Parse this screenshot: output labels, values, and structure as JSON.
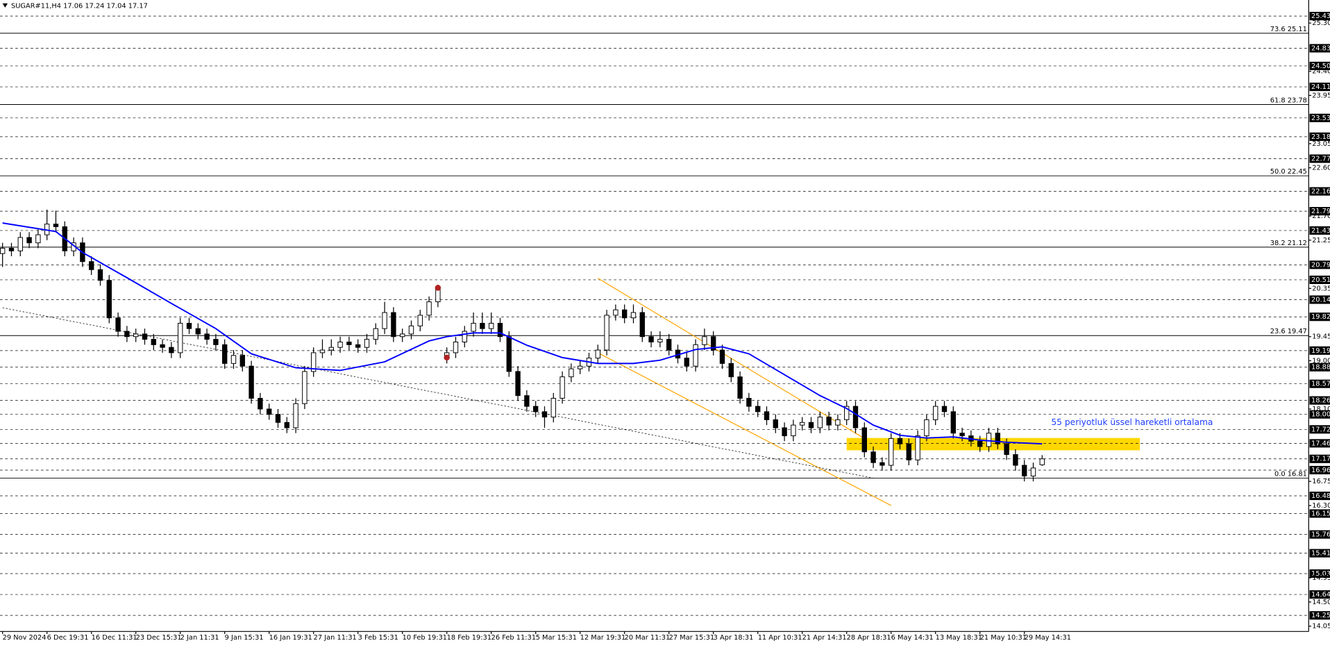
{
  "chart_data": {
    "type": "candlestick",
    "title": "SUGAR#11,H4",
    "ylim": [
      13.95,
      25.73
    ],
    "xlim": [
      0,
      147
    ],
    "categories": [
      "29 Nov 2024",
      null,
      null,
      null,
      null,
      "6 Dec 19:31",
      null,
      null,
      null,
      null,
      "16 Dec 11:31",
      null,
      null,
      null,
      null,
      "23 Dec 15:31",
      null,
      null,
      null,
      null,
      "2 Jan 11:31",
      null,
      null,
      null,
      null,
      "9 Jan 15:31",
      null,
      null,
      null,
      null,
      "16 Jan 19:31",
      null,
      null,
      null,
      null,
      "27 Jan 11:31",
      null,
      null,
      null,
      null,
      "3 Feb 15:31",
      null,
      null,
      null,
      null,
      "10 Feb 19:31",
      null,
      null,
      null,
      null,
      "18 Feb 19:31",
      null,
      null,
      null,
      null,
      "26 Feb 11:31",
      null,
      null,
      null,
      null,
      "5 Mar 15:31",
      null,
      null,
      null,
      null,
      "12 Mar 19:31",
      null,
      null,
      null,
      null,
      "20 Mar 11:31",
      null,
      null,
      null,
      null,
      "27 Mar 15:31",
      null,
      null,
      null,
      null,
      "3 Apr 18:31",
      null,
      null,
      null,
      null,
      "11 Apr 10:31",
      null,
      null,
      null,
      null,
      "21 Apr 14:31",
      null,
      null,
      null,
      null,
      "28 Apr 18:31",
      null,
      null,
      null,
      null,
      "6 May 14:31",
      null,
      null,
      null,
      null,
      "13 May 18:31",
      null,
      null,
      null,
      null,
      "21 May 10:31",
      null,
      null,
      null,
      null,
      "29 May 14:31",
      null,
      null
    ],
    "open": [
      21.0,
      21.1,
      21.05,
      21.3,
      21.2,
      21.35,
      21.55,
      21.5,
      21.05,
      21.2,
      20.85,
      20.7,
      20.5,
      19.8,
      19.55,
      19.45,
      19.5,
      19.4,
      19.3,
      19.25,
      19.15,
      19.7,
      19.6,
      19.5,
      19.4,
      19.3,
      18.95,
      19.1,
      18.9,
      18.3,
      18.1,
      18.0,
      17.85,
      17.75,
      18.2,
      18.8,
      19.15,
      19.2,
      19.25,
      19.35,
      19.3,
      19.25,
      19.4,
      19.6,
      19.9,
      19.45,
      19.5,
      19.65,
      19.85,
      20.1,
      19.05,
      19.15,
      19.35,
      19.55,
      19.7,
      19.6,
      19.7,
      19.45,
      18.8,
      18.35,
      18.15,
      18.05,
      17.95,
      18.3,
      18.7,
      18.85,
      18.9,
      19.05,
      19.2,
      19.85,
      19.95,
      19.8,
      19.9,
      19.45,
      19.35,
      19.4,
      19.2,
      19.05,
      18.9,
      19.3,
      19.45,
      19.2,
      18.95,
      18.7,
      18.3,
      18.15,
      18.05,
      17.9,
      17.75,
      17.6,
      17.8,
      17.85,
      17.75,
      17.95,
      17.8,
      17.9,
      18.15,
      17.75,
      17.3,
      17.1,
      17.05,
      17.55,
      17.45,
      17.15,
      17.6,
      17.9,
      18.15,
      18.05,
      17.65,
      17.6,
      17.5,
      17.4,
      17.65,
      17.45,
      17.25,
      17.05,
      16.85,
      17.06
    ],
    "high": [
      21.2,
      21.2,
      21.4,
      21.4,
      21.45,
      21.82,
      21.8,
      21.6,
      21.3,
      21.3,
      20.95,
      20.8,
      20.6,
      19.9,
      19.65,
      19.6,
      19.6,
      19.5,
      19.4,
      19.35,
      19.8,
      19.8,
      19.7,
      19.6,
      19.5,
      19.4,
      19.2,
      19.2,
      19.0,
      18.4,
      18.2,
      18.1,
      17.95,
      18.3,
      18.9,
      19.25,
      19.4,
      19.4,
      19.45,
      19.45,
      19.4,
      19.5,
      19.7,
      20.1,
      20.0,
      19.6,
      19.75,
      19.95,
      20.2,
      20.42,
      19.25,
      19.45,
      19.65,
      19.9,
      19.9,
      19.9,
      19.8,
      19.55,
      18.9,
      18.45,
      18.25,
      18.15,
      18.4,
      18.8,
      18.95,
      19.0,
      19.15,
      19.3,
      19.95,
      20.05,
      20.05,
      20.05,
      20.0,
      19.55,
      19.55,
      19.5,
      19.3,
      19.15,
      19.4,
      19.6,
      19.55,
      19.3,
      19.05,
      18.8,
      18.4,
      18.25,
      18.15,
      18.0,
      17.85,
      17.9,
      17.95,
      17.95,
      18.05,
      18.05,
      18.0,
      18.25,
      18.25,
      17.85,
      17.4,
      17.2,
      17.65,
      17.65,
      17.55,
      17.7,
      18.0,
      18.25,
      18.25,
      18.15,
      17.75,
      17.7,
      17.6,
      17.75,
      17.75,
      17.55,
      17.35,
      17.15,
      17.1,
      17.24
    ],
    "low": [
      20.75,
      20.95,
      20.95,
      21.1,
      21.1,
      21.25,
      21.4,
      20.95,
      20.95,
      20.75,
      20.6,
      20.4,
      19.7,
      19.45,
      19.35,
      19.35,
      19.3,
      19.2,
      19.15,
      19.05,
      19.05,
      19.5,
      19.4,
      19.3,
      19.2,
      18.85,
      18.85,
      18.8,
      18.2,
      18.0,
      17.9,
      17.75,
      17.65,
      17.65,
      18.1,
      18.7,
      19.05,
      19.1,
      19.15,
      19.2,
      19.15,
      19.15,
      19.3,
      19.5,
      19.35,
      19.35,
      19.4,
      19.55,
      19.75,
      20.0,
      18.95,
      19.05,
      19.25,
      19.45,
      19.5,
      19.5,
      19.35,
      18.7,
      18.25,
      18.05,
      17.95,
      17.75,
      17.85,
      18.2,
      18.6,
      18.75,
      18.8,
      18.95,
      19.1,
      19.75,
      19.7,
      19.7,
      19.35,
      19.25,
      19.25,
      19.1,
      18.95,
      18.8,
      18.8,
      19.2,
      19.1,
      18.85,
      18.6,
      18.2,
      18.05,
      17.95,
      17.8,
      17.65,
      17.5,
      17.5,
      17.7,
      17.65,
      17.65,
      17.7,
      17.7,
      17.8,
      17.65,
      17.2,
      17.0,
      16.95,
      16.95,
      17.35,
      17.05,
      17.05,
      17.5,
      17.8,
      17.95,
      17.55,
      17.5,
      17.4,
      17.3,
      17.3,
      17.35,
      17.15,
      16.95,
      16.75,
      16.75,
      17.04
    ],
    "close": [
      21.1,
      21.05,
      21.3,
      21.2,
      21.35,
      21.55,
      21.5,
      21.05,
      21.2,
      20.85,
      20.7,
      20.5,
      19.8,
      19.55,
      19.45,
      19.5,
      19.4,
      19.3,
      19.25,
      19.15,
      19.7,
      19.6,
      19.5,
      19.4,
      19.3,
      18.95,
      19.1,
      18.9,
      18.3,
      18.1,
      18.0,
      17.85,
      17.75,
      18.2,
      18.8,
      19.15,
      19.2,
      19.25,
      19.35,
      19.3,
      19.25,
      19.4,
      19.6,
      19.9,
      19.45,
      19.5,
      19.65,
      19.85,
      20.1,
      20.35,
      19.15,
      19.35,
      19.55,
      19.7,
      19.6,
      19.7,
      19.45,
      18.8,
      18.35,
      18.15,
      18.05,
      17.95,
      18.3,
      18.7,
      18.85,
      18.9,
      19.05,
      19.2,
      19.85,
      19.95,
      19.8,
      19.9,
      19.45,
      19.35,
      19.4,
      19.2,
      19.05,
      18.9,
      19.3,
      19.45,
      19.2,
      18.95,
      18.7,
      18.3,
      18.15,
      18.05,
      17.9,
      17.75,
      17.6,
      17.8,
      17.85,
      17.75,
      17.95,
      17.8,
      17.9,
      18.15,
      17.75,
      17.3,
      17.1,
      17.05,
      17.55,
      17.45,
      17.15,
      17.6,
      17.9,
      18.15,
      18.05,
      17.65,
      17.6,
      17.5,
      17.4,
      17.65,
      17.45,
      17.25,
      17.05,
      16.85,
      17.0,
      17.17
    ],
    "ema": {
      "color": "#0000ff",
      "x": [
        0,
        6,
        9,
        14,
        19,
        24,
        28,
        33,
        38,
        43,
        48,
        50,
        53,
        56,
        59,
        63,
        67,
        71,
        74,
        78,
        81,
        84,
        88,
        92,
        95,
        98,
        101,
        104,
        107,
        110,
        113,
        117
      ],
      "values": [
        21.57,
        21.41,
        21.02,
        20.55,
        20.07,
        19.6,
        19.13,
        18.87,
        18.82,
        18.98,
        19.37,
        19.45,
        19.52,
        19.52,
        19.29,
        19.06,
        18.95,
        18.95,
        19.01,
        19.21,
        19.26,
        19.13,
        18.74,
        18.35,
        18.11,
        17.8,
        17.61,
        17.56,
        17.58,
        17.52,
        17.48,
        17.45
      ]
    },
    "trendlines": [
      {
        "color": "#ffa500",
        "dash": false,
        "x": [
          67,
          97
        ],
        "values": [
          20.54,
          17.55
        ]
      },
      {
        "color": "#ffa500",
        "dash": false,
        "x": [
          67,
          100
        ],
        "values": [
          19.15,
          16.3
        ]
      },
      {
        "color": "#000000",
        "dash": true,
        "x": [
          0,
          98
        ],
        "values": [
          19.99,
          16.81
        ]
      }
    ],
    "zone": {
      "color": "#ffd700",
      "x": [
        95,
        128
      ],
      "values": [
        17.56,
        17.33
      ]
    },
    "markers": {
      "color": "#b22222",
      "x": [
        49,
        50
      ],
      "values": [
        20.36,
        19.06
      ]
    },
    "annotation": {
      "text": "55 periyotluk üssel hareketli ortalama",
      "color": "#1f3fff"
    },
    "fib_levels": [
      {
        "value": 25.11,
        "label": "73.6 25.11"
      },
      {
        "value": 23.78,
        "label": "61.8 23.78"
      },
      {
        "value": 22.45,
        "label": "50.0 22.45"
      },
      {
        "value": 21.12,
        "label": "38.2 21.12"
      },
      {
        "value": 19.47,
        "label": "23.6 19.47"
      },
      {
        "value": 16.81,
        "label": "0.0 16.81"
      }
    ],
    "levels": [
      25.43,
      24.83,
      {
        "value": 24.5,
        "label": "24.50"
      },
      24.11,
      23.53,
      23.18,
      22.77,
      22.16,
      21.79,
      21.43,
      20.79,
      20.51,
      20.14,
      19.82,
      19.19,
      18.88,
      18.57,
      18.26,
      {
        "value": 18,
        "label": "18.00"
      },
      17.72,
      17.46,
      17.17,
      16.96,
      16.48,
      16.15,
      15.76,
      15.41,
      15.03,
      14.64,
      14.25
    ],
    "yticks": [
      {
        "value": 25.3,
        "label": "25.30"
      },
      {
        "value": 24.4,
        "label": "24.40"
      },
      23.95,
      23.05,
      {
        "value": 22.6,
        "label": "22.60"
      },
      {
        "value": 21.7,
        "label": "21.70"
      },
      21.25,
      20.35,
      19.45,
      {
        "value": 19,
        "label": "19.00"
      },
      {
        "value": 18.1,
        "label": "18.10"
      },
      16.75,
      {
        "value": 16.3,
        "label": "16.30"
      },
      14.95,
      {
        "value": 14.5,
        "label": "14.50"
      },
      14.05
    ]
  }
}
